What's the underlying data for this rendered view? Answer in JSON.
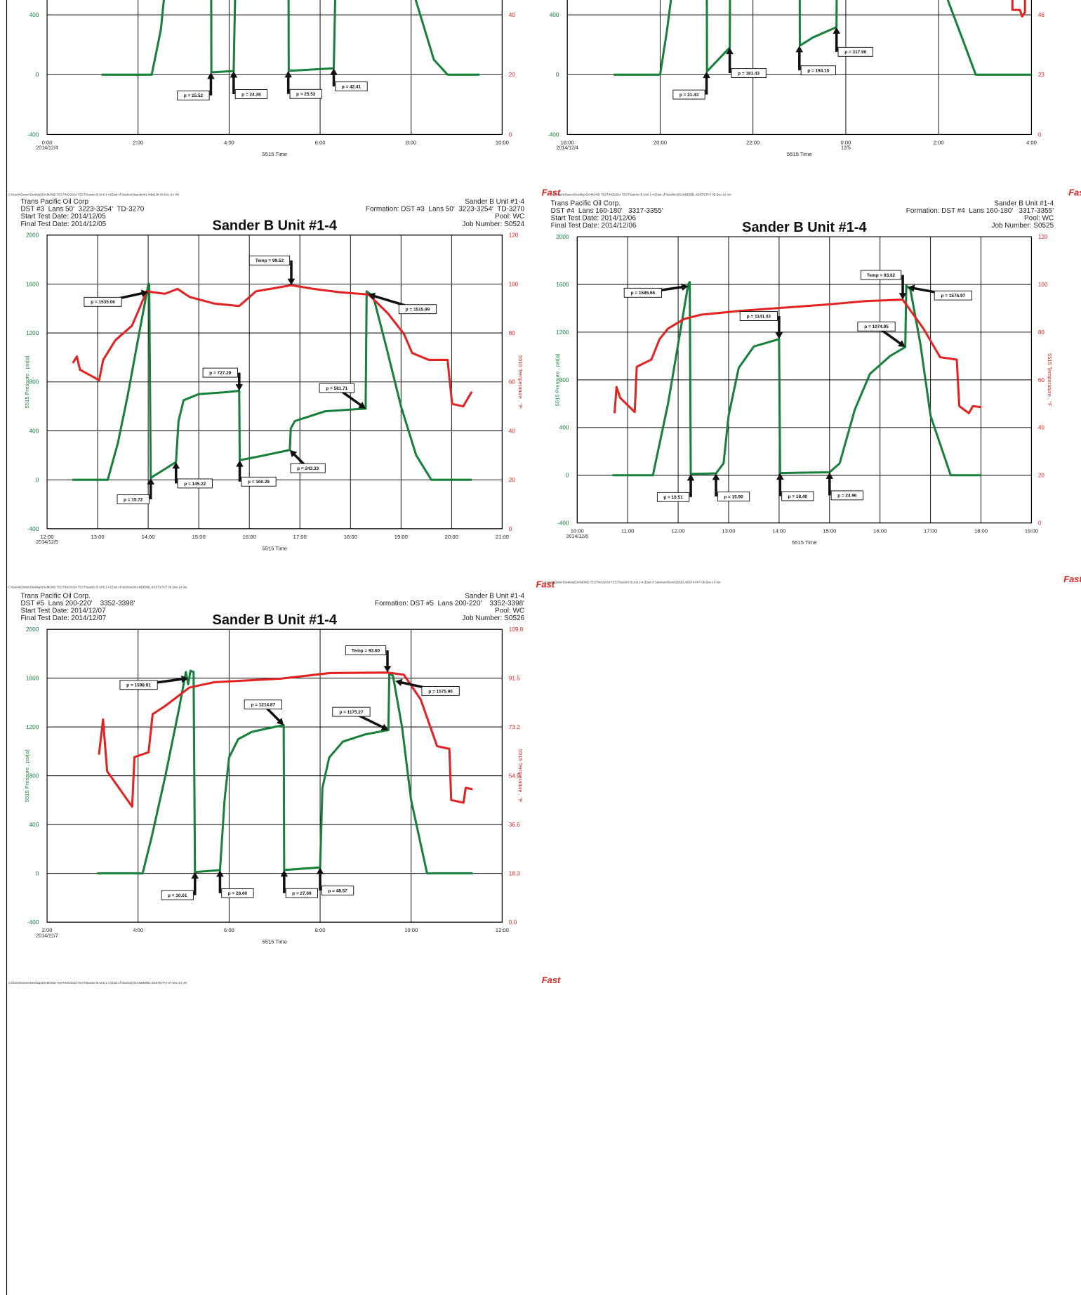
{
  "chart_data": [
    {
      "type": "line",
      "x_label": "5515 Time",
      "xlim": [
        0,
        10
      ],
      "xticks": [
        {
          "value": 0,
          "label": "0:00"
        },
        {
          "value": 2,
          "label": "2:00"
        },
        {
          "value": 4,
          "label": "4:00"
        },
        {
          "value": 6,
          "label": "6:00"
        },
        {
          "value": 8,
          "label": "8:00"
        },
        {
          "value": 10,
          "label": "10:00"
        }
      ],
      "x_dates": [
        {
          "value": 0,
          "label": "2014/12/4"
        }
      ],
      "ylim": [
        -400,
        2000
      ],
      "yticks": [
        -400,
        0,
        400
      ],
      "y2lim": [
        0,
        120
      ],
      "y2ticks": [
        0,
        20,
        40
      ],
      "grid": true,
      "series": [
        {
          "color": "#17803a",
          "x": [
            1.2,
            2.3,
            2.5,
            2.7,
            3.6,
            3.61,
            4.1,
            4.15,
            4.2,
            5.3,
            5.31,
            6.3,
            6.35,
            6.5,
            7.9,
            8.1,
            8.5,
            8.8,
            9.5
          ],
          "values": [
            0,
            0,
            300,
            900,
            1600,
            15.52,
            24.38,
            800,
            1500,
            1500,
            25.53,
            42.41,
            800,
            1500,
            1500,
            500,
            100,
            0,
            0
          ]
        }
      ],
      "annotations": [
        {
          "x": 3.6,
          "value": 15.52,
          "label": "p = 15.52"
        },
        {
          "x": 4.1,
          "value": 24.38,
          "label": "p = 24.38"
        },
        {
          "x": 5.3,
          "value": 25.53,
          "label": "p = 25.53"
        },
        {
          "x": 6.3,
          "value": 42.41,
          "label": "p = 42.41"
        }
      ],
      "footer": "C:\\Users\\Owner\\Desktop\\DIAMOND TESTING\\2014 TEST\\Sander B Unit 1-4 (East of Stockton)\\sanderb1-4dst1.fkt 04-Dec-14 Ver",
      "logo": "Fast"
    },
    {
      "type": "line",
      "x_label": "5515 Time",
      "xlim": [
        18,
        28
      ],
      "xticks": [
        {
          "value": 18,
          "label": "18:00"
        },
        {
          "value": 20,
          "label": "20:00"
        },
        {
          "value": 22,
          "label": "22:00"
        },
        {
          "value": 24,
          "label": "0:00"
        },
        {
          "value": 26,
          "label": "2:00"
        },
        {
          "value": 28,
          "label": "4:00"
        }
      ],
      "x_dates": [
        {
          "value": 18,
          "label": "2014/12/4"
        },
        {
          "value": 24,
          "label": "12/5"
        }
      ],
      "ylim": [
        -400,
        2000
      ],
      "yticks": [
        -400,
        0,
        400
      ],
      "y2lim": [
        0,
        138
      ],
      "y2ticks": [
        0,
        23,
        46
      ],
      "grid": true,
      "series": [
        {
          "color": "#17803a",
          "x": [
            19,
            20,
            20.15,
            20.4,
            21,
            21.01,
            21.5,
            21.52,
            23,
            23.01,
            23.3,
            23.8,
            23.82,
            26.0,
            26.2,
            26.5,
            26.8,
            28
          ],
          "values": [
            0,
            0,
            300,
            900,
            1500,
            21.43,
            181.43,
            1500,
            1500,
            194.15,
            250,
            317.96,
            1500,
            1500,
            497,
            250,
            0,
            0
          ]
        },
        {
          "color": "#e32222",
          "axis": "y2",
          "x": [
            27.59,
            27.59,
            27.75,
            27.8,
            27.86,
            27.86
          ],
          "values": [
            51.7,
            47.9,
            47.9,
            45.4,
            47,
            51.7
          ]
        }
      ],
      "annotations": [
        {
          "x": 21.0,
          "value": 21.43,
          "label": "p = 21.43"
        },
        {
          "x": 21.5,
          "value": 181.43,
          "label": "p = 181.43"
        },
        {
          "x": 23.0,
          "value": 194.15,
          "label": "p = 194.15"
        },
        {
          "x": 23.8,
          "value": 317.96,
          "label": "p = 317.96"
        }
      ],
      "footer": "C:\\Users\\Owner\\Desktop\\DIAMOND TESTING\\2014 TEST\\Sander B Unit 1-4 (East of Stockton)\\SANDERB1-4DST2.FKT 05-Dec-14 Ver",
      "logo": "Fast"
    },
    {
      "type": "line",
      "title": "Sander B Unit #1-4",
      "header_left": [
        "Trans Pacific Oil Corp",
        "DST #3  Lans 50'  3223-3254'  TD-3270",
        "Start Test Date: 2014/12/05",
        "Final Test Date: 2014/12/05"
      ],
      "header_right": [
        "Sander B Unit #1-4",
        "Formation: DST #3  Lans 50'  3223-3254'  TD-3270",
        "Pool: WC",
        "Job Number: S0524"
      ],
      "x_label": "5515 Time",
      "y_label": "5515 Pressure , psi(a)",
      "y2_label": "5515 Temperature , °F",
      "xlim": [
        12,
        21
      ],
      "xticks": [
        {
          "value": 12,
          "label": "12:00"
        },
        {
          "value": 13,
          "label": "13:00"
        },
        {
          "value": 14,
          "label": "14:00"
        },
        {
          "value": 15,
          "label": "15:00"
        },
        {
          "value": 16,
          "label": "16:00"
        },
        {
          "value": 17,
          "label": "17:00"
        },
        {
          "value": 18,
          "label": "18:00"
        },
        {
          "value": 19,
          "label": "19:00"
        },
        {
          "value": 20,
          "label": "20:00"
        },
        {
          "value": 21,
          "label": "21:00"
        }
      ],
      "x_dates": [
        {
          "value": 12,
          "label": "2014/12/5"
        }
      ],
      "ylim": [
        -400,
        2000
      ],
      "yticks": [
        -400,
        0,
        400,
        800,
        1200,
        1600,
        2000
      ],
      "y2lim": [
        0,
        120
      ],
      "y2ticks": [
        0,
        20,
        40,
        60,
        80,
        100,
        120
      ],
      "grid": true,
      "series": [
        {
          "color": "#17803a",
          "x": [
            12.5,
            13.2,
            13.4,
            13.6,
            13.8,
            14.0,
            14.02,
            14.05,
            14.3,
            14.55,
            14.6,
            14.7,
            15.0,
            15.5,
            15.8,
            15.81,
            16.3,
            16.8,
            16.82,
            16.9,
            17.5,
            18.3,
            18.32,
            18.45,
            18.7,
            19.0,
            19.3,
            19.6,
            20.0,
            20.4
          ],
          "values": [
            0,
            0,
            300,
            700,
            1150,
            1590,
            1600,
            15.72,
            80,
            145.22,
            480,
            650,
            700,
            715,
            727.29,
            160.28,
            200,
            243.33,
            420,
            480,
            560,
            581.71,
            1540,
            1500,
            1100,
            600,
            200,
            0,
            0,
            0
          ]
        },
        {
          "color": "#e32222",
          "axis": "y2",
          "x": [
            12.51,
            12.59,
            12.65,
            13.03,
            13.11,
            13.35,
            13.68,
            13.97,
            14.33,
            14.58,
            14.82,
            15.31,
            15.8,
            16.13,
            16.83,
            17.27,
            17.76,
            18.36,
            18.74,
            19.06,
            19.22,
            19.55,
            19.92,
            20.01,
            20.23,
            20.4
          ],
          "values": [
            67.7,
            70.4,
            65,
            60.7,
            69,
            77,
            83,
            97,
            96,
            98,
            94.7,
            92,
            91,
            97,
            99.52,
            98,
            96.7,
            95.7,
            88,
            79.5,
            71.8,
            69,
            69,
            51,
            50,
            56
          ]
        }
      ],
      "annotations": [
        {
          "x": 14.0,
          "value": 1535.06,
          "label": "p = 1535.06"
        },
        {
          "x": 16.83,
          "value": 99.52,
          "label": "Temp = 99.52",
          "axis": "y2"
        },
        {
          "x": 18.35,
          "value": 1515.99,
          "label": "p = 1515.99"
        },
        {
          "x": 15.8,
          "value": 727.29,
          "label": "p = 727.29"
        },
        {
          "x": 18.3,
          "value": 581.71,
          "label": "p = 581.71"
        },
        {
          "x": 14.05,
          "value": 15.72,
          "label": "p = 15.72"
        },
        {
          "x": 14.55,
          "value": 145.22,
          "label": "p = 145.22"
        },
        {
          "x": 15.81,
          "value": 160.28,
          "label": "p = 160.28"
        },
        {
          "x": 16.8,
          "value": 243.33,
          "label": "p = 243.33"
        }
      ],
      "footer": "C:\\Users\\Owner\\Desktop\\DIAMOND TESTING\\2014 TEST\\Sander B Unit 1-4 (East of Stockton)\\SANDERB1-4DST3.FKT 05-Dec-14 Ver",
      "logo": "Fast"
    },
    {
      "type": "line",
      "title": "Sander B Unit #1-4",
      "header_left": [
        "Trans Pacific Oil Corp.",
        "DST #4  Lans 160-180'   3317-3355'",
        "Start Test Date: 2014/12/06",
        "Final Test Date: 2014/12/06"
      ],
      "header_right": [
        "Sander B Unit #1-4",
        "Formation: DST #4  Lans 160-180'   3317-3355'",
        "Pool: WC",
        "Job Number: S0525"
      ],
      "x_label": "5515 Time",
      "y_label": "5515 Pressure , psi(a)",
      "y2_label": "5515 Temperature , °F",
      "xlim": [
        10,
        19
      ],
      "xticks": [
        {
          "value": 10,
          "label": "10:00"
        },
        {
          "value": 11,
          "label": "11:00"
        },
        {
          "value": 12,
          "label": "12:00"
        },
        {
          "value": 13,
          "label": "13:00"
        },
        {
          "value": 14,
          "label": "14:00"
        },
        {
          "value": 15,
          "label": "15:00"
        },
        {
          "value": 16,
          "label": "16:00"
        },
        {
          "value": 17,
          "label": "17:00"
        },
        {
          "value": 18,
          "label": "18:00"
        },
        {
          "value": 19,
          "label": "19:00"
        }
      ],
      "x_dates": [
        {
          "value": 10,
          "label": "2014/12/6"
        }
      ],
      "ylim": [
        -400,
        2000
      ],
      "yticks": [
        -400,
        0,
        400,
        800,
        1200,
        1600,
        2000
      ],
      "y2lim": [
        0,
        120
      ],
      "y2ticks": [
        0,
        20,
        40,
        60,
        80,
        100,
        120
      ],
      "grid": true,
      "series": [
        {
          "color": "#17803a",
          "x": [
            10.7,
            11.5,
            11.8,
            12.0,
            12.2,
            12.23,
            12.25,
            12.75,
            12.9,
            13.0,
            13.2,
            13.5,
            14.0,
            14.02,
            14.5,
            15.0,
            15.2,
            15.5,
            15.8,
            16.2,
            16.5,
            16.52,
            16.6,
            16.8,
            17.0,
            17.4,
            18.0
          ],
          "values": [
            0,
            0,
            600,
            1100,
            1600,
            1620,
            10.51,
            15.9,
            100,
            500,
            900,
            1080,
            1141.43,
            18.4,
            22,
            24.96,
            100,
            550,
            850,
            1000,
            1074.95,
            1590,
            1560,
            1100,
            500,
            0,
            0
          ]
        },
        {
          "color": "#e32222",
          "axis": "y2",
          "x": [
            10.74,
            10.78,
            10.85,
            11.14,
            11.18,
            11.47,
            11.63,
            11.8,
            12.12,
            12.45,
            13.27,
            14.9,
            15.72,
            16.45,
            16.86,
            17.19,
            17.52,
            17.57,
            17.76,
            17.84,
            18.01
          ],
          "values": [
            46,
            57,
            52.5,
            46.5,
            65.5,
            68.5,
            77,
            81.5,
            85.5,
            87.3,
            89,
            91.5,
            93,
            93.62,
            81.5,
            69.5,
            68.5,
            49,
            46,
            49,
            48.5
          ]
        }
      ],
      "annotations": [
        {
          "x": 12.2,
          "value": 1585.66,
          "label": "p = 1585.66"
        },
        {
          "x": 14.0,
          "value": 1141.43,
          "label": "p = 1141.43"
        },
        {
          "x": 16.45,
          "value": 93.62,
          "label": "Temp = 93.62",
          "axis": "y2"
        },
        {
          "x": 16.55,
          "value": 1576.97,
          "label": "p = 1576.97"
        },
        {
          "x": 16.5,
          "value": 1074.95,
          "label": "p = 1074.95"
        },
        {
          "x": 12.25,
          "value": 10.51,
          "label": "p = 10.51"
        },
        {
          "x": 12.75,
          "value": 15.9,
          "label": "p = 15.90"
        },
        {
          "x": 14.02,
          "value": 18.4,
          "label": "p = 18.40"
        },
        {
          "x": 15.0,
          "value": 24.96,
          "label": "p = 24.96"
        }
      ],
      "footer": "C:\\Users\\Owner\\Desktop\\DIAMOND TESTING\\2014 TEST\\Sander B Unit 1-4 (East of Stockton)\\SANDERB1-4DST4.FKT 06-Dec-14 Ver",
      "logo": "Fast"
    },
    {
      "type": "line",
      "title": "Sander B Unit #1-4",
      "header_left": [
        "Trans Pacific Oil Corp.",
        "DST #5  Lans 200-220'    3352-3398'",
        "Start Test Date: 2014/12/07",
        "Final Test Date: 2014/12/07"
      ],
      "header_right": [
        "Sander B Unit #1-4",
        "Formation: DST #5  Lans 200-220'    3352-3398'",
        "Pool: WC",
        "Job Number: S0526"
      ],
      "x_label": "5515 Time",
      "y_label": "5515 Pressure , psi(a)",
      "y2_label": "5515 Temperature , °F",
      "xlim": [
        2,
        12
      ],
      "xticks": [
        {
          "value": 2,
          "label": "2:00"
        },
        {
          "value": 4,
          "label": "4:00"
        },
        {
          "value": 6,
          "label": "6:00"
        },
        {
          "value": 8,
          "label": "8:00"
        },
        {
          "value": 10,
          "label": "10:00"
        },
        {
          "value": 12,
          "label": "12:00"
        }
      ],
      "x_dates": [
        {
          "value": 2,
          "label": "2014/12/7"
        }
      ],
      "ylim": [
        -400,
        2000
      ],
      "yticks": [
        -400,
        0,
        400,
        800,
        1200,
        1600,
        2000
      ],
      "y2lim": [
        0,
        109.8
      ],
      "y2ticks": [
        {
          "value": 0,
          "label": "0.0"
        },
        18.3,
        36.6,
        54.9,
        73.2,
        91.5,
        109.8
      ],
      "grid": true,
      "series": [
        {
          "color": "#17803a",
          "x": [
            3.1,
            4.1,
            4.3,
            4.6,
            4.9,
            5.05,
            5.1,
            5.15,
            5.22,
            5.25,
            5.8,
            5.9,
            6.0,
            6.2,
            6.5,
            7.0,
            7.2,
            7.21,
            8.0,
            8.05,
            8.2,
            8.5,
            9.0,
            9.5,
            9.52,
            9.6,
            9.8,
            10.0,
            10.35,
            11.35
          ],
          "values": [
            0,
            0,
            300,
            800,
            1350,
            1650,
            1550,
            1660,
            1650,
            10.61,
            26.6,
            600,
            950,
            1100,
            1160,
            1200,
            1214.87,
            27.69,
            48.57,
            700,
            950,
            1080,
            1140,
            1175.27,
            1640,
            1620,
            1200,
            600,
            0,
            0
          ]
        },
        {
          "color": "#e32222",
          "axis": "y2",
          "x": [
            3.14,
            3.23,
            3.32,
            3.87,
            3.92,
            4.23,
            4.32,
            4.59,
            5.13,
            5.68,
            7.13,
            8.21,
            9.48,
            9.84,
            10.21,
            10.57,
            10.84,
            10.88,
            11.15,
            11.2,
            11.35
          ],
          "values": [
            62.8,
            76,
            56.6,
            43.3,
            61.9,
            63.7,
            78,
            81,
            88,
            90,
            91.3,
            93.4,
            93.6,
            92.8,
            83.5,
            66,
            65,
            45.8,
            44.8,
            50.4,
            49.8
          ]
        }
      ],
      "annotations": [
        {
          "x": 5.1,
          "value": 1598.91,
          "label": "p = 1598.91"
        },
        {
          "x": 9.48,
          "value": 93.6,
          "label": "Temp = 93.60",
          "axis": "y2"
        },
        {
          "x": 9.65,
          "value": 1575.9,
          "label": "p = 1575.90"
        },
        {
          "x": 7.2,
          "value": 1214.87,
          "label": "p = 1214.87"
        },
        {
          "x": 9.5,
          "value": 1175.27,
          "label": "p = 1175.27"
        },
        {
          "x": 5.25,
          "value": 10.61,
          "label": "p = 10.61"
        },
        {
          "x": 5.8,
          "value": 26.6,
          "label": "p = 26.60"
        },
        {
          "x": 7.21,
          "value": 27.69,
          "label": "p = 27.69"
        },
        {
          "x": 8.0,
          "value": 48.57,
          "label": "p = 48.57"
        }
      ],
      "footer": "C:\\Users\\Owner\\Desktop\\DIAMOND TESTING\\2014 TEST\\Sander B Unit 1-4 (East of Stockton)\\SANDERB1-4DST5.FKT 07-Dec-14 Ver",
      "logo": "Fast"
    }
  ]
}
